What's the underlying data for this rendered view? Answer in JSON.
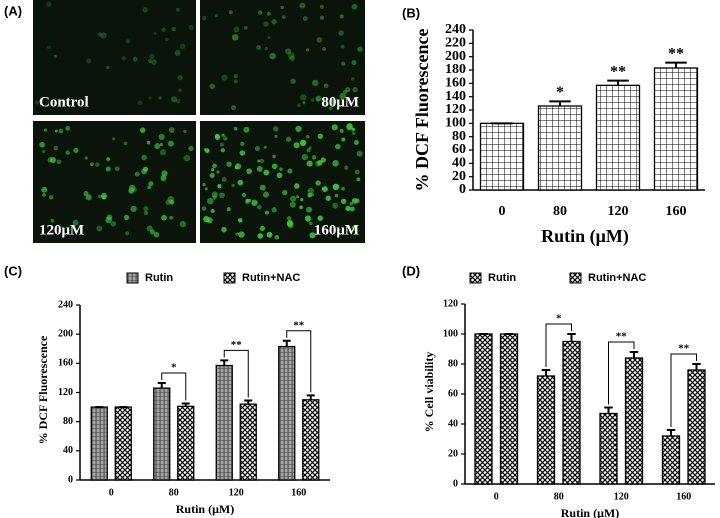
{
  "panel_a": {
    "label": "(A)",
    "images": [
      "Control",
      "80μM",
      "120μM",
      "160μM"
    ]
  },
  "chart_data": [
    {
      "type": "bar",
      "panel_label": "(B)",
      "y_label": "% DCF Fluorescence",
      "x_label": "Rutin (μM)",
      "categories": [
        "0",
        "80",
        "120",
        "160"
      ],
      "values": [
        100,
        126,
        157,
        183
      ],
      "errors": [
        0,
        7,
        7,
        8
      ],
      "significance": [
        null,
        "*",
        "**",
        "**"
      ],
      "ylim": [
        0,
        240
      ],
      "yticks": [
        0,
        20,
        40,
        60,
        80,
        100,
        120,
        140,
        160,
        180,
        200,
        220,
        240
      ]
    },
    {
      "type": "grouped_bar",
      "panel_label": "(C)",
      "y_label": "% DCF Fluorescence",
      "x_label": "Rutin (μM)",
      "categories": [
        "0",
        "80",
        "120",
        "160"
      ],
      "series": [
        {
          "name": "Rutin",
          "values": [
            100,
            126,
            157,
            183
          ],
          "errors": [
            0,
            7,
            7,
            8
          ]
        },
        {
          "name": "Rutin+NAC",
          "values": [
            100,
            101,
            104,
            110
          ],
          "errors": [
            0,
            4,
            5,
            6
          ]
        }
      ],
      "significance": [
        null,
        "*",
        "**",
        "**"
      ],
      "ylim": [
        0,
        240
      ],
      "yticks": [
        0,
        40,
        80,
        120,
        160,
        200,
        240
      ]
    },
    {
      "type": "grouped_bar",
      "panel_label": "(D)",
      "y_label": "% Cell viability",
      "x_label": "Rutin (μM)",
      "categories": [
        "0",
        "80",
        "120",
        "160"
      ],
      "series": [
        {
          "name": "Rutin",
          "values": [
            100,
            72,
            47,
            32
          ],
          "errors": [
            0,
            4,
            4,
            4
          ]
        },
        {
          "name": "Rutin+NAC",
          "values": [
            100,
            95,
            84,
            76
          ],
          "errors": [
            0,
            5,
            4,
            4
          ]
        }
      ],
      "significance": [
        null,
        "*",
        "**",
        "**"
      ],
      "ylim": [
        0,
        120
      ],
      "yticks": [
        0,
        20,
        40,
        60,
        80,
        100,
        120
      ]
    }
  ]
}
